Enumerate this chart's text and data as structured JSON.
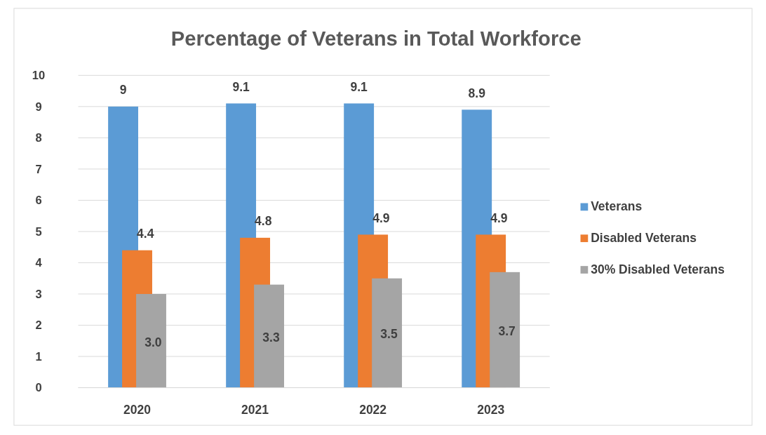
{
  "chart_data": {
    "type": "bar",
    "title": "Percentage of Veterans in Total Workforce",
    "categories": [
      "2020",
      "2021",
      "2022",
      "2023"
    ],
    "series": [
      {
        "name": "Veterans",
        "color": "#5b9bd5",
        "values": [
          9,
          9.1,
          9.1,
          8.9
        ],
        "value_labels": [
          "9",
          "9.1",
          "9.1",
          "8.9"
        ]
      },
      {
        "name": "Disabled Veterans",
        "color": "#ed7d31",
        "values": [
          4.4,
          4.8,
          4.9,
          4.9
        ],
        "value_labels": [
          "4.4",
          "4.8",
          "4.9",
          "4.9"
        ]
      },
      {
        "name": "30% Disabled Veterans",
        "color": "#a5a5a5",
        "values": [
          3.0,
          3.3,
          3.5,
          3.7
        ],
        "value_labels": [
          "3.0",
          "3.3",
          "3.5",
          "3.7"
        ]
      }
    ],
    "ylim": [
      0,
      10
    ],
    "yticks": [
      0,
      1,
      2,
      3,
      4,
      5,
      6,
      7,
      8,
      9,
      10
    ],
    "grid": "y",
    "legend": "right"
  }
}
